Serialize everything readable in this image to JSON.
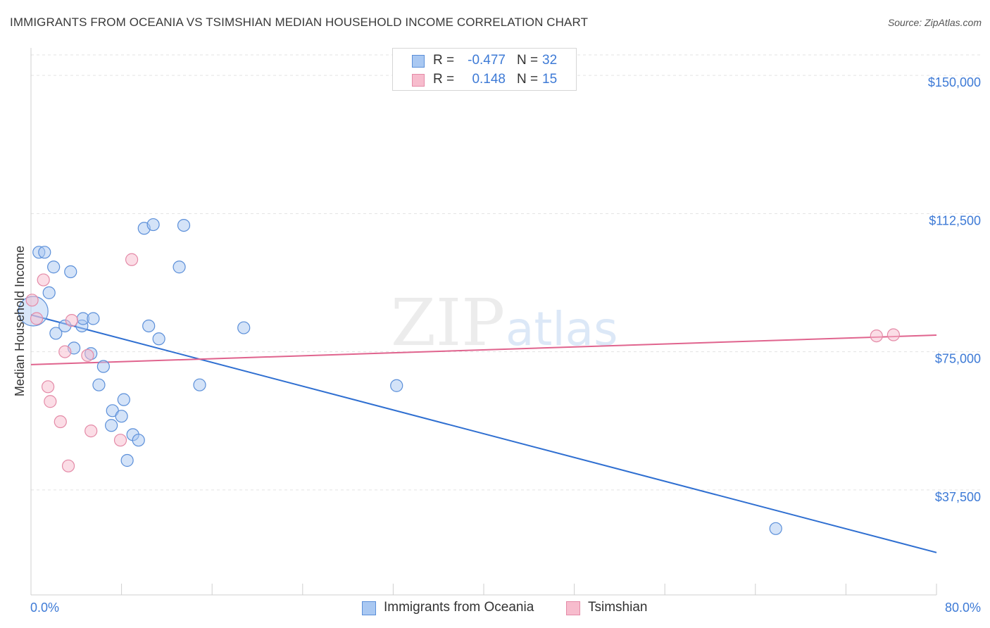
{
  "title": "IMMIGRANTS FROM OCEANIA VS TSIMSHIAN MEDIAN HOUSEHOLD INCOME CORRELATION CHART",
  "source": "Source: ZipAtlas.com",
  "watermark": {
    "zip": "ZIP",
    "atlas": "atlas"
  },
  "colors": {
    "blue_fill": "#a9c8f2",
    "blue_stroke": "#5b8fd9",
    "blue_line": "#2f6fd1",
    "pink_fill": "#f7bccd",
    "pink_stroke": "#e48aa7",
    "pink_line": "#e0648e",
    "grid": "#e3e3e3",
    "axis_text": "#3d7ad6"
  },
  "legend": {
    "rows": [
      {
        "r_label": "R =",
        "r_value": "-0.477",
        "n_label": "N =",
        "n_value": "32"
      },
      {
        "r_label": "R =",
        "r_value": "0.148",
        "n_label": "N =",
        "n_value": "15"
      }
    ]
  },
  "bottom_legend": [
    "Immigrants from Oceania",
    "Tsimshian"
  ],
  "chart_data": {
    "type": "scatter",
    "title": "IMMIGRANTS FROM OCEANIA VS TSIMSHIAN MEDIAN HOUSEHOLD INCOME CORRELATION CHART",
    "xlabel": "",
    "ylabel": "Median Household Income",
    "xlim": [
      0,
      80
    ],
    "ylim": [
      9000,
      159000
    ],
    "x_tick_labels": [
      "0.0%",
      "80.0%"
    ],
    "y_ticks": [
      37500,
      75000,
      112500,
      150000
    ],
    "y_tick_labels": [
      "$37,500",
      "$75,000",
      "$112,500",
      "$150,000"
    ],
    "series": [
      {
        "name": "Immigrants from Oceania",
        "r": -0.477,
        "n": 32,
        "trend": {
          "x": [
            0,
            80
          ],
          "y": [
            85000,
            20500
          ]
        },
        "points": [
          {
            "x": 0.2,
            "y": 86000,
            "big": true
          },
          {
            "x": 0.7,
            "y": 102000
          },
          {
            "x": 1.2,
            "y": 102000
          },
          {
            "x": 2.0,
            "y": 98000
          },
          {
            "x": 1.6,
            "y": 91000
          },
          {
            "x": 2.2,
            "y": 80000
          },
          {
            "x": 3.0,
            "y": 82000
          },
          {
            "x": 3.5,
            "y": 96700
          },
          {
            "x": 3.8,
            "y": 76000
          },
          {
            "x": 4.5,
            "y": 82000
          },
          {
            "x": 4.6,
            "y": 84000
          },
          {
            "x": 5.3,
            "y": 74500
          },
          {
            "x": 5.5,
            "y": 84000
          },
          {
            "x": 6.0,
            "y": 66000
          },
          {
            "x": 6.4,
            "y": 71000
          },
          {
            "x": 7.1,
            "y": 55000
          },
          {
            "x": 7.2,
            "y": 59000
          },
          {
            "x": 8.0,
            "y": 57500
          },
          {
            "x": 8.2,
            "y": 62000
          },
          {
            "x": 8.5,
            "y": 45500
          },
          {
            "x": 9.0,
            "y": 52500
          },
          {
            "x": 9.5,
            "y": 51000
          },
          {
            "x": 10.0,
            "y": 108500
          },
          {
            "x": 10.4,
            "y": 82000
          },
          {
            "x": 10.8,
            "y": 109500
          },
          {
            "x": 11.3,
            "y": 78500
          },
          {
            "x": 13.1,
            "y": 98000
          },
          {
            "x": 13.5,
            "y": 109300
          },
          {
            "x": 14.9,
            "y": 66000
          },
          {
            "x": 18.8,
            "y": 81500
          },
          {
            "x": 32.3,
            "y": 65800
          },
          {
            "x": 65.8,
            "y": 27000
          }
        ]
      },
      {
        "name": "Tsimshian",
        "r": 0.148,
        "n": 15,
        "trend": {
          "x": [
            0,
            80
          ],
          "y": [
            71500,
            79500
          ]
        },
        "points": [
          {
            "x": 0.1,
            "y": 89000
          },
          {
            "x": 0.5,
            "y": 84000
          },
          {
            "x": 1.1,
            "y": 94500
          },
          {
            "x": 1.5,
            "y": 65500
          },
          {
            "x": 1.7,
            "y": 61500
          },
          {
            "x": 2.6,
            "y": 56000
          },
          {
            "x": 3.0,
            "y": 75000
          },
          {
            "x": 3.3,
            "y": 44000
          },
          {
            "x": 3.6,
            "y": 83500
          },
          {
            "x": 5.0,
            "y": 74000
          },
          {
            "x": 5.3,
            "y": 53500
          },
          {
            "x": 7.9,
            "y": 51000
          },
          {
            "x": 8.9,
            "y": 100000
          },
          {
            "x": 74.7,
            "y": 79300
          },
          {
            "x": 76.2,
            "y": 79600
          }
        ]
      }
    ]
  }
}
